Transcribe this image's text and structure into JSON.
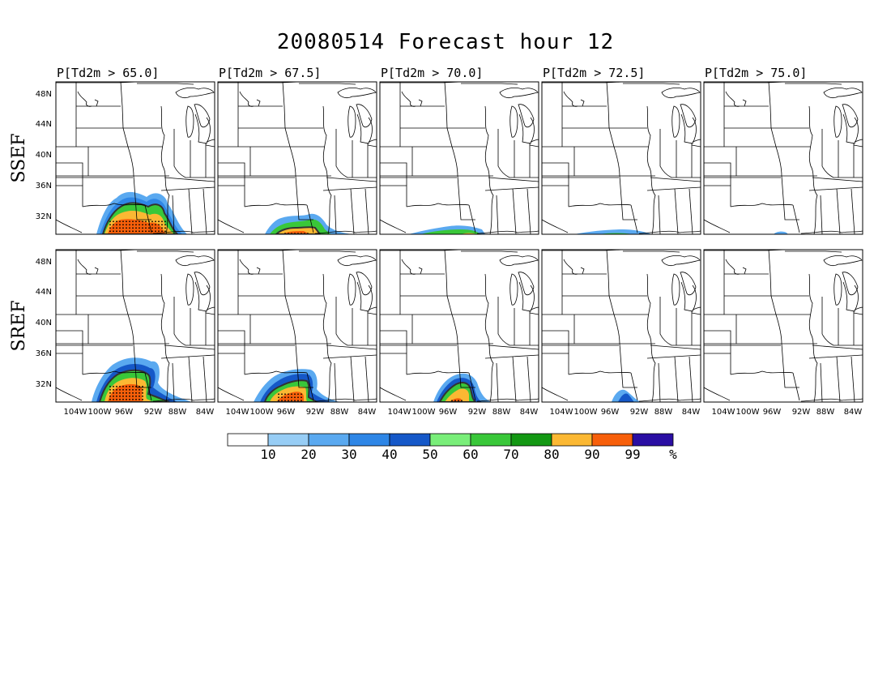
{
  "title": "20080514 Forecast hour 12",
  "panel_titles": [
    "P[Td2m > 65.0]",
    "P[Td2m > 67.5]",
    "P[Td2m > 70.0]",
    "P[Td2m > 72.5]",
    "P[Td2m > 75.0]"
  ],
  "rows": [
    "SSEF",
    "SREF"
  ],
  "lat_labels": [
    "48N",
    "44N",
    "40N",
    "36N",
    "32N"
  ],
  "lon_labels": [
    "104W",
    "100W",
    "96W",
    "92W",
    "88W",
    "84W"
  ],
  "colorbar": {
    "labels": [
      "10",
      "20",
      "30",
      "40",
      "50",
      "60",
      "70",
      "80",
      "90",
      "99",
      "%"
    ],
    "colors": [
      "#ffffff",
      "#97cdf5",
      "#5aa9f0",
      "#2e86e6",
      "#1558c8",
      "#79ee79",
      "#39c739",
      "#139813",
      "#fbb833",
      "#f75f0a",
      "#2a0ea3"
    ]
  }
}
